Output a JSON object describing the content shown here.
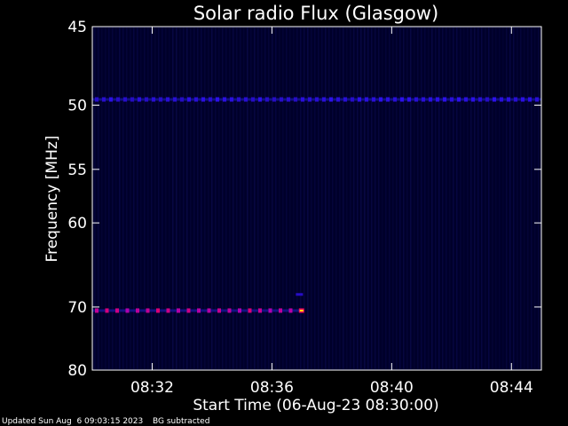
{
  "chart_data": {
    "type": "heatmap",
    "title": "Solar radio Flux (Glasgow)",
    "xlabel": "Start Time (06-Aug-23 08:30:00)",
    "ylabel": "Frequency [MHz]",
    "x_ticks": [
      "08:32",
      "08:36",
      "08:40",
      "08:44"
    ],
    "x_tick_minutes": [
      2,
      6,
      10,
      14
    ],
    "xlim_minutes": [
      0,
      15
    ],
    "y_ticks": [
      45,
      50,
      55,
      60,
      70,
      80
    ],
    "y_scale": "reciprocal",
    "ylim": [
      45,
      80
    ],
    "colormap": "black-blue-red-yellow",
    "features": [
      {
        "name": "band-50",
        "freq_mhz": 49.6,
        "t_start_min": 0,
        "t_end_min": 15,
        "intensity": 0.35
      },
      {
        "name": "band-70.5",
        "freq_mhz": 70.5,
        "t_start_min": 0,
        "t_end_min": 7,
        "intensity": 0.6
      },
      {
        "name": "burst",
        "freq_mhz": 70.5,
        "t_start_min": 6.9,
        "t_end_min": 7.0,
        "intensity": 1.0
      },
      {
        "name": "spike-68",
        "freq_mhz": 68.3,
        "t_start_min": 6.8,
        "t_end_min": 7.0,
        "intensity": 0.3
      }
    ]
  },
  "footer": {
    "updated": "Updated Sun Aug  6 09:03:15 2023",
    "bg": "BG subtracted"
  }
}
